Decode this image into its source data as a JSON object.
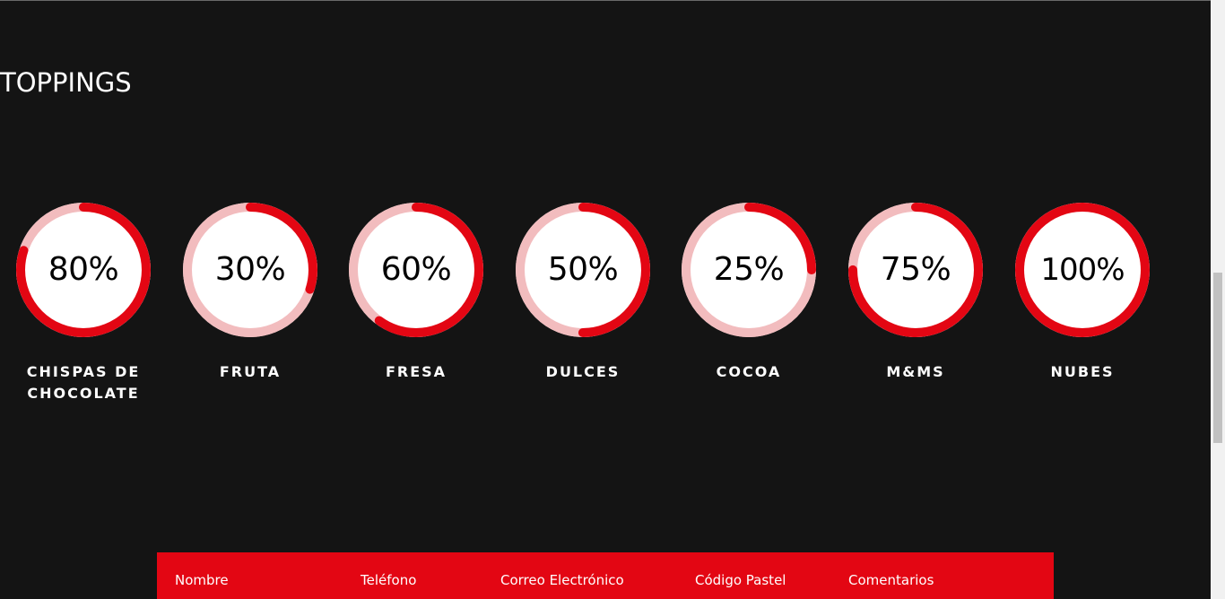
{
  "section": {
    "title": "TOPPINGS"
  },
  "colors": {
    "background": "#141414",
    "accent": "#e30613",
    "track": "#f2bcbe",
    "ring_fill": "#ffffff"
  },
  "toppings": [
    {
      "label": "CHISPAS DE CHOCOLATE",
      "value_text": "80%",
      "value": 80
    },
    {
      "label": "FRUTA",
      "value_text": "30%",
      "value": 30
    },
    {
      "label": "FRESA",
      "value_text": "60%",
      "value": 60
    },
    {
      "label": "DULCES",
      "value_text": "50%",
      "value": 50
    },
    {
      "label": "COCOA",
      "value_text": "25%",
      "value": 25
    },
    {
      "label": "M&MS",
      "value_text": "75%",
      "value": 75
    },
    {
      "label": "NUBES",
      "value_text": "100%",
      "value": 100
    }
  ],
  "form": {
    "columns": [
      "Nombre",
      "Teléfono",
      "Correo Electrónico",
      "Código Pastel",
      "Comentarios"
    ]
  }
}
